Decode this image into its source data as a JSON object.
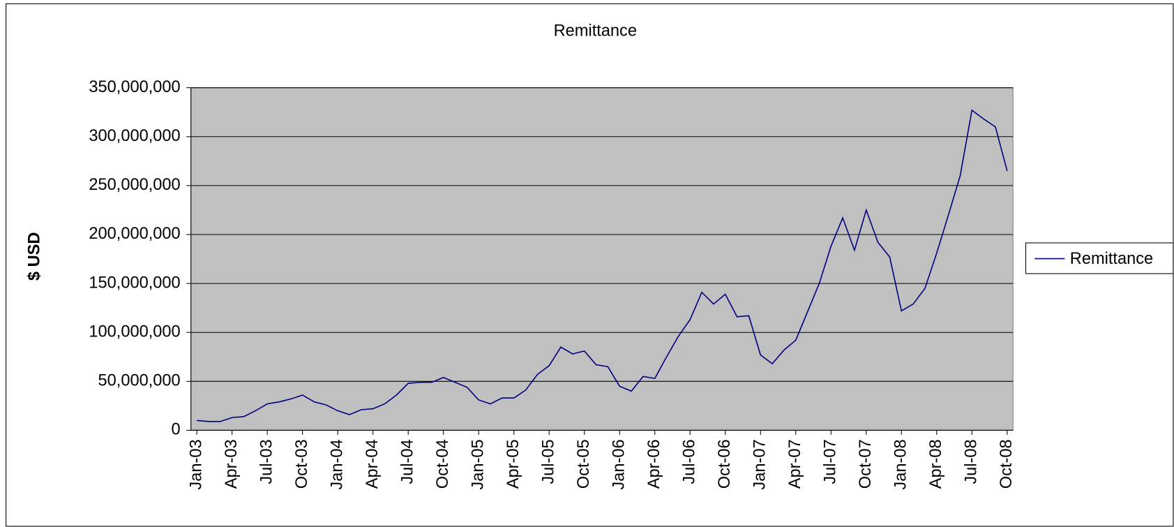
{
  "chart_data": {
    "type": "line",
    "title": "Remittance",
    "y_label": "$ USD",
    "categories": [
      "Jan-03",
      null,
      null,
      "Apr-03",
      null,
      null,
      "Jul-03",
      null,
      null,
      "Oct-03",
      null,
      null,
      "Jan-04",
      null,
      null,
      "Apr-04",
      null,
      null,
      "Jul-04",
      null,
      null,
      "Oct-04",
      null,
      null,
      "Jan-05",
      null,
      null,
      "Apr-05",
      null,
      null,
      "Jul-05",
      null,
      null,
      "Oct-05",
      null,
      null,
      "Jan-06",
      null,
      null,
      "Apr-06",
      null,
      null,
      "Jul-06",
      null,
      null,
      "Oct-06",
      null,
      null,
      "Jan-07",
      null,
      null,
      "Apr-07",
      null,
      null,
      "Jul-07",
      null,
      null,
      "Oct-07",
      null,
      null,
      "Jan-08",
      null,
      null,
      "Apr-08",
      null,
      null,
      "Jul-08",
      null,
      null,
      "Oct-08"
    ],
    "series": [
      {
        "name": "Remittance",
        "color": "#000080",
        "values": [
          10000000,
          9000000,
          9000000,
          13000000,
          14000000,
          20000000,
          27000000,
          29000000,
          32000000,
          36000000,
          29000000,
          26000000,
          20000000,
          16000000,
          21000000,
          22000000,
          27000000,
          36000000,
          48000000,
          49000000,
          49000000,
          54000000,
          49000000,
          44000000,
          31000000,
          27000000,
          33000000,
          33000000,
          41000000,
          57000000,
          66000000,
          85000000,
          78000000,
          81000000,
          67000000,
          65000000,
          45000000,
          40000000,
          55000000,
          53000000,
          75000000,
          96000000,
          113000000,
          141000000,
          129000000,
          139000000,
          116000000,
          117000000,
          77000000,
          68000000,
          82000000,
          92000000,
          121000000,
          150000000,
          188000000,
          217000000,
          184000000,
          225000000,
          192000000,
          177000000,
          122000000,
          129000000,
          145000000,
          181000000,
          220000000,
          260000000,
          327000000,
          318000000,
          310000000,
          265000000
        ]
      }
    ],
    "ylim": [
      0,
      350000000
    ],
    "yticks": [
      0,
      {
        "value": 50000000,
        "label": "50,000,000"
      },
      {
        "value": 100000000,
        "label": "100,000,000"
      },
      {
        "value": 150000000,
        "label": "150,000,000"
      },
      {
        "value": 200000000,
        "label": "200,000,000"
      },
      {
        "value": 250000000,
        "label": "250,000,000"
      },
      {
        "value": 300000000,
        "label": "300,000,000"
      },
      {
        "value": 350000000,
        "label": "350,000,000"
      }
    ],
    "grid": true,
    "legend": "right",
    "plot_background": "#c0c0c0"
  }
}
